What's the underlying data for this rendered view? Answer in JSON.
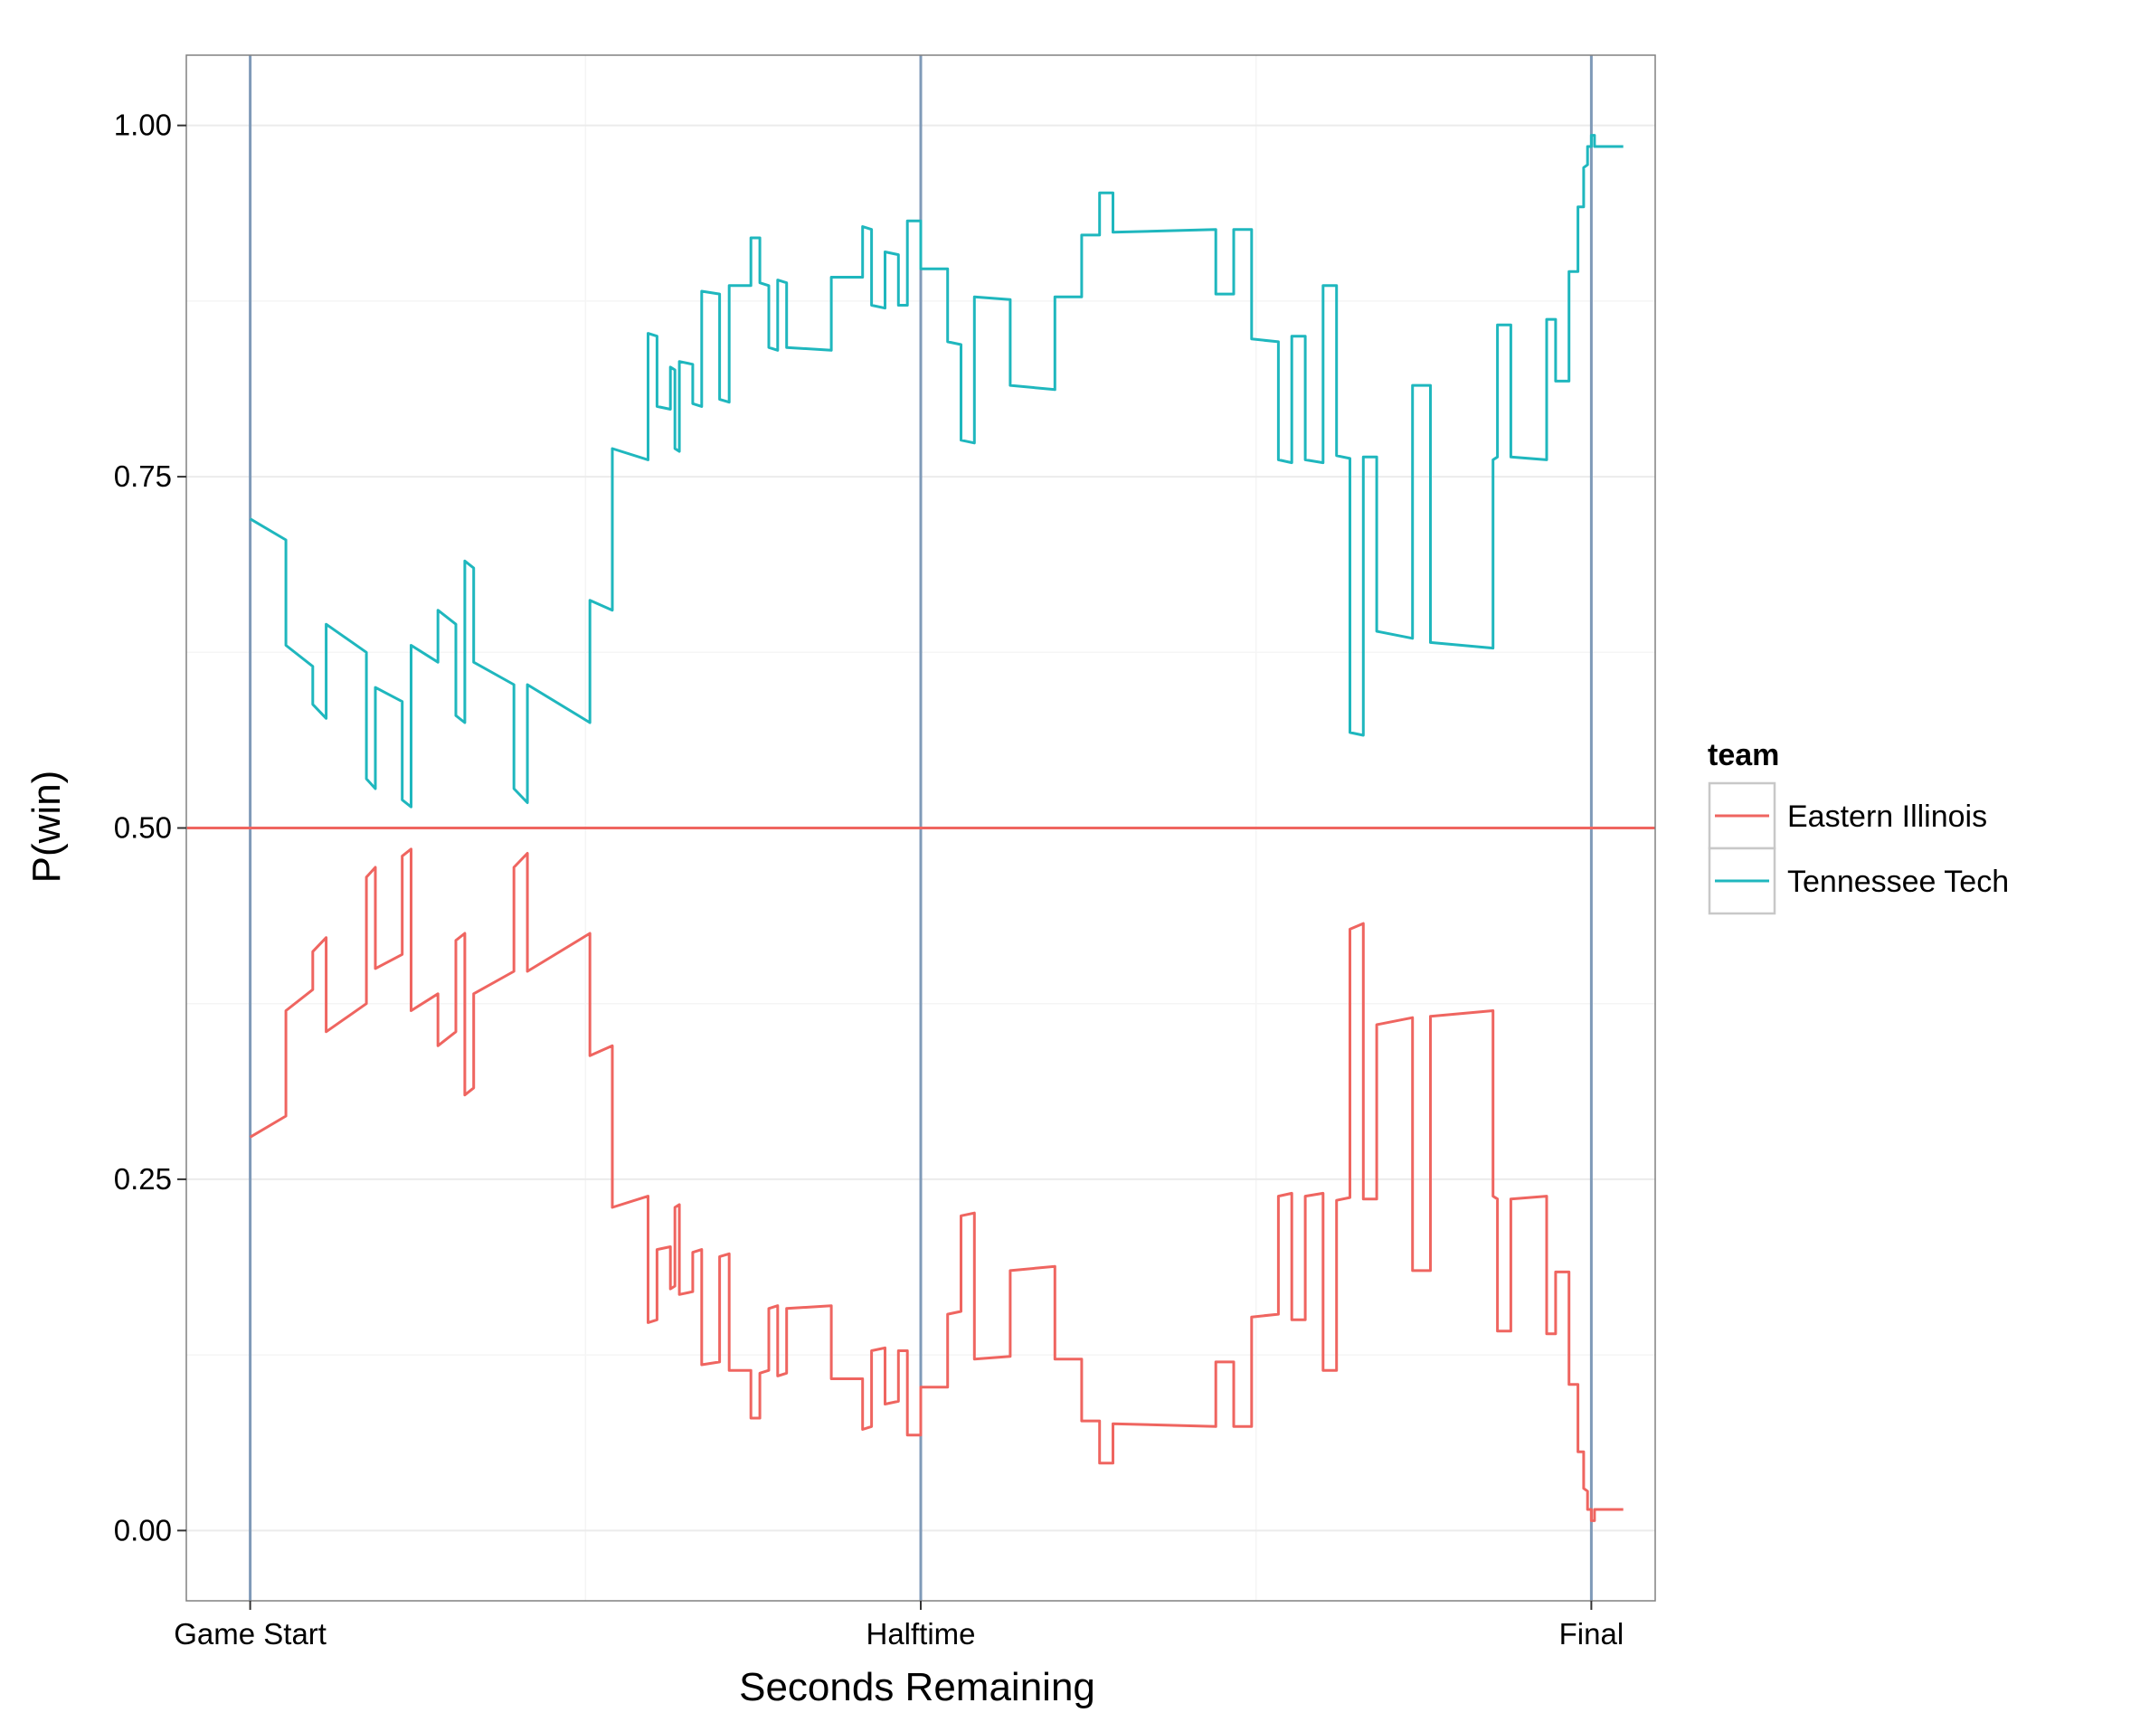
{
  "chart_data": {
    "type": "line",
    "title": "",
    "xlabel": "Seconds Remaining",
    "ylabel": "P(win)",
    "xlim": [
      -200,
      4400
    ],
    "ylim": [
      -0.05,
      1.05
    ],
    "x_ticks": [
      {
        "value": 0,
        "label": "Game Start"
      },
      {
        "value": 2100,
        "label": "Halftime"
      },
      {
        "value": 4200,
        "label": "Final"
      }
    ],
    "y_ticks": [
      {
        "value": 0.0,
        "label": "0.00"
      },
      {
        "value": 0.25,
        "label": "0.25"
      },
      {
        "value": 0.5,
        "label": "0.50"
      },
      {
        "value": 0.75,
        "label": "0.75"
      },
      {
        "value": 1.0,
        "label": "1.00"
      }
    ],
    "vertical_markers": [
      0,
      2100,
      4200
    ],
    "horizontal_reference": 0.5,
    "grid": true,
    "legend": {
      "title": "team",
      "position": "right"
    },
    "series": [
      {
        "name": "Tennessee Tech",
        "color": "#1fb7be",
        "points": [
          [
            0,
            0.72
          ],
          [
            112,
            0.705
          ],
          [
            112,
            0.63
          ],
          [
            196,
            0.615
          ],
          [
            196,
            0.588
          ],
          [
            238,
            0.578
          ],
          [
            238,
            0.645
          ],
          [
            364,
            0.625
          ],
          [
            364,
            0.535
          ],
          [
            392,
            0.528
          ],
          [
            392,
            0.6
          ],
          [
            476,
            0.59
          ],
          [
            476,
            0.52
          ],
          [
            504,
            0.515
          ],
          [
            504,
            0.63
          ],
          [
            588,
            0.618
          ],
          [
            588,
            0.655
          ],
          [
            644,
            0.645
          ],
          [
            644,
            0.58
          ],
          [
            672,
            0.575
          ],
          [
            672,
            0.69
          ],
          [
            700,
            0.685
          ],
          [
            700,
            0.618
          ],
          [
            826,
            0.602
          ],
          [
            826,
            0.528
          ],
          [
            868,
            0.518
          ],
          [
            868,
            0.602
          ],
          [
            1064,
            0.575
          ],
          [
            1064,
            0.662
          ],
          [
            1134,
            0.655
          ],
          [
            1134,
            0.77
          ],
          [
            1246,
            0.762
          ],
          [
            1246,
            0.852
          ],
          [
            1274,
            0.85
          ],
          [
            1274,
            0.8
          ],
          [
            1316,
            0.798
          ],
          [
            1316,
            0.828
          ],
          [
            1330,
            0.826
          ],
          [
            1330,
            0.77
          ],
          [
            1344,
            0.768
          ],
          [
            1344,
            0.832
          ],
          [
            1386,
            0.83
          ],
          [
            1386,
            0.802
          ],
          [
            1414,
            0.8
          ],
          [
            1414,
            0.882
          ],
          [
            1470,
            0.88
          ],
          [
            1470,
            0.805
          ],
          [
            1500,
            0.803
          ],
          [
            1500,
            0.886
          ],
          [
            1568,
            0.886
          ],
          [
            1568,
            0.92
          ],
          [
            1596,
            0.92
          ],
          [
            1596,
            0.888
          ],
          [
            1624,
            0.886
          ],
          [
            1624,
            0.842
          ],
          [
            1652,
            0.84
          ],
          [
            1652,
            0.89
          ],
          [
            1680,
            0.888
          ],
          [
            1680,
            0.842
          ],
          [
            1820,
            0.84
          ],
          [
            1820,
            0.892
          ],
          [
            1918,
            0.892
          ],
          [
            1918,
            0.928
          ],
          [
            1946,
            0.926
          ],
          [
            1946,
            0.872
          ],
          [
            1988,
            0.87
          ],
          [
            1988,
            0.91
          ],
          [
            2030,
            0.908
          ],
          [
            2030,
            0.872
          ],
          [
            2058,
            0.872
          ],
          [
            2058,
            0.932
          ],
          [
            2100,
            0.932
          ],
          [
            2100,
            0.898
          ],
          [
            2184,
            0.898
          ],
          [
            2184,
            0.846
          ],
          [
            2226,
            0.844
          ],
          [
            2226,
            0.776
          ],
          [
            2268,
            0.774
          ],
          [
            2268,
            0.878
          ],
          [
            2380,
            0.876
          ],
          [
            2380,
            0.815
          ],
          [
            2520,
            0.812
          ],
          [
            2520,
            0.878
          ],
          [
            2604,
            0.878
          ],
          [
            2604,
            0.922
          ],
          [
            2660,
            0.922
          ],
          [
            2660,
            0.952
          ],
          [
            2702,
            0.952
          ],
          [
            2702,
            0.924
          ],
          [
            3024,
            0.926
          ],
          [
            3024,
            0.88
          ],
          [
            3080,
            0.88
          ],
          [
            3080,
            0.926
          ],
          [
            3136,
            0.926
          ],
          [
            3136,
            0.848
          ],
          [
            3220,
            0.846
          ],
          [
            3220,
            0.762
          ],
          [
            3262,
            0.76
          ],
          [
            3262,
            0.85
          ],
          [
            3304,
            0.85
          ],
          [
            3304,
            0.762
          ],
          [
            3360,
            0.76
          ],
          [
            3360,
            0.886
          ],
          [
            3402,
            0.886
          ],
          [
            3402,
            0.765
          ],
          [
            3444,
            0.763
          ],
          [
            3444,
            0.568
          ],
          [
            3486,
            0.566
          ],
          [
            3486,
            0.764
          ],
          [
            3528,
            0.764
          ],
          [
            3528,
            0.64
          ],
          [
            3640,
            0.635
          ],
          [
            3640,
            0.815
          ],
          [
            3696,
            0.815
          ],
          [
            3696,
            0.632
          ],
          [
            3892,
            0.628
          ],
          [
            3892,
            0.762
          ],
          [
            3906,
            0.764
          ],
          [
            3906,
            0.858
          ],
          [
            3948,
            0.858
          ],
          [
            3948,
            0.764
          ],
          [
            4060,
            0.762
          ],
          [
            4060,
            0.862
          ],
          [
            4088,
            0.862
          ],
          [
            4088,
            0.818
          ],
          [
            4130,
            0.818
          ],
          [
            4130,
            0.896
          ],
          [
            4158,
            0.896
          ],
          [
            4158,
            0.942
          ],
          [
            4176,
            0.942
          ],
          [
            4176,
            0.97
          ],
          [
            4188,
            0.972
          ],
          [
            4188,
            0.985
          ],
          [
            4200,
            0.985
          ],
          [
            4200,
            0.993
          ],
          [
            4210,
            0.993
          ],
          [
            4210,
            0.985
          ],
          [
            4300,
            0.985
          ]
        ]
      },
      {
        "name": "Eastern Illinois",
        "color": "#ef6560",
        "points": [
          [
            0,
            0.28
          ],
          [
            112,
            0.295
          ],
          [
            112,
            0.37
          ],
          [
            196,
            0.385
          ],
          [
            196,
            0.412
          ],
          [
            238,
            0.422
          ],
          [
            238,
            0.355
          ],
          [
            364,
            0.375
          ],
          [
            364,
            0.465
          ],
          [
            392,
            0.472
          ],
          [
            392,
            0.4
          ],
          [
            476,
            0.41
          ],
          [
            476,
            0.48
          ],
          [
            504,
            0.485
          ],
          [
            504,
            0.37
          ],
          [
            588,
            0.382
          ],
          [
            588,
            0.345
          ],
          [
            644,
            0.355
          ],
          [
            644,
            0.42
          ],
          [
            672,
            0.425
          ],
          [
            672,
            0.31
          ],
          [
            700,
            0.315
          ],
          [
            700,
            0.382
          ],
          [
            826,
            0.398
          ],
          [
            826,
            0.472
          ],
          [
            868,
            0.482
          ],
          [
            868,
            0.398
          ],
          [
            1064,
            0.425
          ],
          [
            1064,
            0.338
          ],
          [
            1134,
            0.345
          ],
          [
            1134,
            0.23
          ],
          [
            1246,
            0.238
          ],
          [
            1246,
            0.148
          ],
          [
            1274,
            0.15
          ],
          [
            1274,
            0.2
          ],
          [
            1316,
            0.202
          ],
          [
            1316,
            0.172
          ],
          [
            1330,
            0.174
          ],
          [
            1330,
            0.23
          ],
          [
            1344,
            0.232
          ],
          [
            1344,
            0.168
          ],
          [
            1386,
            0.17
          ],
          [
            1386,
            0.198
          ],
          [
            1414,
            0.2
          ],
          [
            1414,
            0.118
          ],
          [
            1470,
            0.12
          ],
          [
            1470,
            0.195
          ],
          [
            1500,
            0.197
          ],
          [
            1500,
            0.114
          ],
          [
            1568,
            0.114
          ],
          [
            1568,
            0.08
          ],
          [
            1596,
            0.08
          ],
          [
            1596,
            0.112
          ],
          [
            1624,
            0.114
          ],
          [
            1624,
            0.158
          ],
          [
            1652,
            0.16
          ],
          [
            1652,
            0.11
          ],
          [
            1680,
            0.112
          ],
          [
            1680,
            0.158
          ],
          [
            1820,
            0.16
          ],
          [
            1820,
            0.108
          ],
          [
            1918,
            0.108
          ],
          [
            1918,
            0.072
          ],
          [
            1946,
            0.074
          ],
          [
            1946,
            0.128
          ],
          [
            1988,
            0.13
          ],
          [
            1988,
            0.09
          ],
          [
            2030,
            0.092
          ],
          [
            2030,
            0.128
          ],
          [
            2058,
            0.128
          ],
          [
            2058,
            0.068
          ],
          [
            2100,
            0.068
          ],
          [
            2100,
            0.102
          ],
          [
            2184,
            0.102
          ],
          [
            2184,
            0.154
          ],
          [
            2226,
            0.156
          ],
          [
            2226,
            0.224
          ],
          [
            2268,
            0.226
          ],
          [
            2268,
            0.122
          ],
          [
            2380,
            0.124
          ],
          [
            2380,
            0.185
          ],
          [
            2520,
            0.188
          ],
          [
            2520,
            0.122
          ],
          [
            2604,
            0.122
          ],
          [
            2604,
            0.078
          ],
          [
            2660,
            0.078
          ],
          [
            2660,
            0.048
          ],
          [
            2702,
            0.048
          ],
          [
            2702,
            0.076
          ],
          [
            3024,
            0.074
          ],
          [
            3024,
            0.12
          ],
          [
            3080,
            0.12
          ],
          [
            3080,
            0.074
          ],
          [
            3136,
            0.074
          ],
          [
            3136,
            0.152
          ],
          [
            3220,
            0.154
          ],
          [
            3220,
            0.238
          ],
          [
            3262,
            0.24
          ],
          [
            3262,
            0.15
          ],
          [
            3304,
            0.15
          ],
          [
            3304,
            0.238
          ],
          [
            3360,
            0.24
          ],
          [
            3360,
            0.114
          ],
          [
            3402,
            0.114
          ],
          [
            3402,
            0.235
          ],
          [
            3444,
            0.237
          ],
          [
            3444,
            0.428
          ],
          [
            3486,
            0.432
          ],
          [
            3486,
            0.236
          ],
          [
            3528,
            0.236
          ],
          [
            3528,
            0.36
          ],
          [
            3640,
            0.365
          ],
          [
            3640,
            0.185
          ],
          [
            3696,
            0.185
          ],
          [
            3696,
            0.366
          ],
          [
            3892,
            0.37
          ],
          [
            3892,
            0.238
          ],
          [
            3906,
            0.236
          ],
          [
            3906,
            0.142
          ],
          [
            3948,
            0.142
          ],
          [
            3948,
            0.236
          ],
          [
            4060,
            0.238
          ],
          [
            4060,
            0.14
          ],
          [
            4088,
            0.14
          ],
          [
            4088,
            0.184
          ],
          [
            4130,
            0.184
          ],
          [
            4130,
            0.104
          ],
          [
            4158,
            0.104
          ],
          [
            4158,
            0.056
          ],
          [
            4176,
            0.056
          ],
          [
            4176,
            0.03
          ],
          [
            4188,
            0.028
          ],
          [
            4188,
            0.015
          ],
          [
            4200,
            0.015
          ],
          [
            4200,
            0.007
          ],
          [
            4210,
            0.007
          ],
          [
            4210,
            0.015
          ],
          [
            4300,
            0.015
          ]
        ]
      }
    ],
    "colors": {
      "marker_line": "#7f9ab8",
      "reference_line": "#ef6560",
      "grid_major": "#ebebeb",
      "grid_minor": "#f5f5f5",
      "panel_border": "#808080",
      "legend_border": "#c8c8c8"
    }
  }
}
